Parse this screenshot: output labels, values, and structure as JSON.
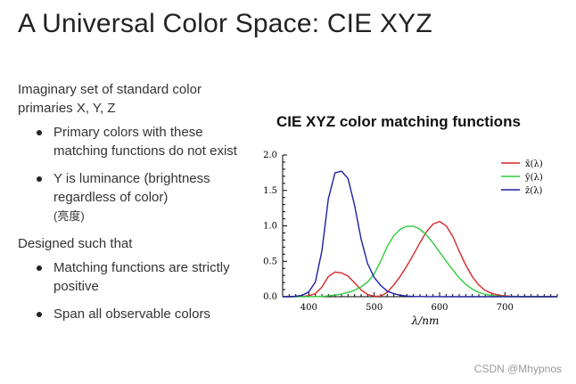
{
  "slide": {
    "title": "A Universal Color Space: CIE XYZ",
    "intro": "Imaginary set of standard color primaries X, Y, Z",
    "bullets_1": [
      {
        "text": "Primary colors with these matching functions do not exist"
      },
      {
        "text": "Y is luminance (brightness regardless of color)",
        "note": "(亮度)"
      }
    ],
    "designed": "Designed such that",
    "bullets_2": [
      {
        "text": "Matching functions are strictly positive"
      },
      {
        "text": "Span all observable colors"
      }
    ],
    "watermark": "CSDN @Mhypnos"
  },
  "chart_data": {
    "type": "line",
    "title": "CIE XYZ color matching functions",
    "xlabel": "λ/nm",
    "ylabel": "",
    "xlim": [
      360,
      780
    ],
    "ylim": [
      0,
      2
    ],
    "xticks": [
      "400",
      "500",
      "600",
      "700"
    ],
    "yticks": [
      "0.0",
      "0.5",
      "1.0",
      "1.5",
      "2.0"
    ],
    "legend_position": "top-right",
    "x": [
      360,
      370,
      380,
      390,
      400,
      410,
      420,
      430,
      440,
      450,
      460,
      470,
      480,
      490,
      500,
      510,
      520,
      530,
      540,
      550,
      560,
      570,
      580,
      590,
      600,
      610,
      620,
      630,
      640,
      650,
      660,
      670,
      680,
      690,
      700,
      710,
      720,
      730,
      740,
      750,
      760,
      770,
      780
    ],
    "series": [
      {
        "name": "x̄(λ)",
        "color": "#d62728",
        "values": [
          0.0,
          0.0,
          0.0014,
          0.0042,
          0.0143,
          0.0435,
          0.1344,
          0.2839,
          0.3483,
          0.3362,
          0.2908,
          0.1954,
          0.0956,
          0.032,
          0.0049,
          0.0093,
          0.0633,
          0.1655,
          0.2904,
          0.4334,
          0.5945,
          0.7621,
          0.9163,
          1.0263,
          1.0622,
          1.0026,
          0.8544,
          0.6424,
          0.4479,
          0.2835,
          0.1649,
          0.0874,
          0.0468,
          0.0227,
          0.0114,
          0.0058,
          0.0029,
          0.0014,
          0.0007,
          0.0003,
          0.0002,
          0.0001,
          0.0
        ]
      },
      {
        "name": "ȳ(λ)",
        "color": "#2ecc40",
        "values": [
          0.0,
          0.0,
          0.0,
          0.0001,
          0.0004,
          0.0012,
          0.004,
          0.0116,
          0.023,
          0.038,
          0.06,
          0.091,
          0.139,
          0.208,
          0.323,
          0.503,
          0.71,
          0.862,
          0.954,
          0.995,
          0.995,
          0.952,
          0.87,
          0.757,
          0.631,
          0.503,
          0.381,
          0.265,
          0.175,
          0.107,
          0.061,
          0.032,
          0.017,
          0.0082,
          0.0041,
          0.0021,
          0.001,
          0.0005,
          0.0002,
          0.0001,
          0.0001,
          0.0,
          0.0
        ]
      },
      {
        "name": "z̄(λ)",
        "color": "#1f1fa0",
        "values": [
          0.0,
          0.0,
          0.0065,
          0.0201,
          0.0679,
          0.2074,
          0.6456,
          1.3856,
          1.7471,
          1.7721,
          1.6692,
          1.2876,
          0.813,
          0.4652,
          0.272,
          0.1582,
          0.0782,
          0.0422,
          0.0203,
          0.0087,
          0.0039,
          0.0021,
          0.0017,
          0.0011,
          0.0008,
          0.0003,
          0.0002,
          0.0,
          0.0,
          0.0,
          0.0,
          0.0,
          0.0,
          0.0,
          0.0,
          0.0,
          0.0,
          0.0,
          0.0,
          0.0,
          0.0,
          0.0,
          0.0
        ]
      }
    ]
  }
}
